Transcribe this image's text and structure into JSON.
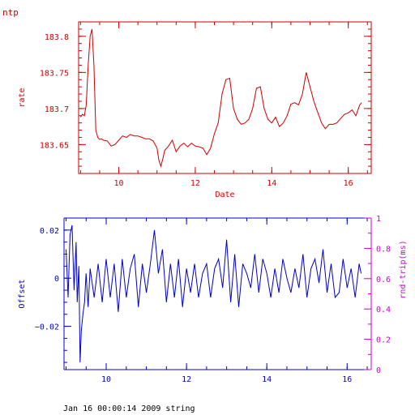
{
  "page": {
    "corner_label": "ntp",
    "caption": "Jan 16 00:00:14 2009 string"
  },
  "colors": {
    "rate": "#cc0000",
    "offset": "#0000cc",
    "rtt": "#cc00cc",
    "text": "#000000"
  },
  "chart_data": [
    {
      "type": "line",
      "title": "",
      "xlabel": "Date",
      "ylabel": "rate",
      "xlim": [
        8.95,
        16.6
      ],
      "ylim": [
        183.61,
        183.82
      ],
      "x_ticks": [
        10,
        12,
        14,
        16
      ],
      "y_ticks": [
        183.65,
        183.7,
        183.75,
        183.8
      ],
      "y_tick_labels": [
        "183.65",
        "183.7",
        "183.75",
        "183.8"
      ],
      "grid": false,
      "series": [
        {
          "x": [
            9.0,
            9.05,
            9.1,
            9.15,
            9.2,
            9.25,
            9.3,
            9.35,
            9.4,
            9.45,
            9.5,
            9.55,
            9.6,
            9.7,
            9.8,
            9.9,
            10.0,
            10.1,
            10.2,
            10.3,
            10.4,
            10.5,
            10.6,
            10.7,
            10.8,
            10.9,
            11.0,
            11.05,
            11.1,
            11.15,
            11.2,
            11.3,
            11.4,
            11.5,
            11.6,
            11.7,
            11.8,
            11.9,
            12.0,
            12.1,
            12.2,
            12.3,
            12.4,
            12.5,
            12.6,
            12.7,
            12.8,
            12.9,
            13.0,
            13.1,
            13.2,
            13.3,
            13.4,
            13.5,
            13.6,
            13.7,
            13.8,
            13.9,
            14.0,
            14.1,
            14.2,
            14.3,
            14.4,
            14.5,
            14.6,
            14.7,
            14.8,
            14.9,
            15.0,
            15.1,
            15.2,
            15.3,
            15.4,
            15.5,
            15.6,
            15.7,
            15.8,
            15.9,
            16.0,
            16.1,
            16.2,
            16.3,
            16.35
          ],
          "y": [
            183.688,
            183.692,
            183.69,
            183.705,
            183.76,
            183.8,
            183.81,
            183.76,
            183.67,
            183.66,
            183.657,
            183.658,
            183.656,
            183.655,
            183.648,
            183.65,
            183.656,
            183.662,
            183.66,
            183.664,
            183.662,
            183.662,
            183.66,
            183.658,
            183.658,
            183.655,
            183.645,
            183.628,
            183.62,
            183.63,
            183.642,
            183.648,
            183.656,
            183.64,
            183.648,
            183.652,
            183.647,
            183.652,
            183.648,
            183.647,
            183.645,
            183.636,
            183.645,
            183.665,
            183.68,
            183.72,
            183.74,
            183.742,
            183.7,
            183.685,
            183.678,
            183.68,
            183.685,
            183.7,
            183.728,
            183.73,
            183.7,
            183.685,
            183.68,
            183.688,
            183.675,
            183.68,
            183.69,
            183.706,
            183.708,
            183.705,
            183.72,
            183.75,
            183.73,
            183.71,
            183.695,
            183.68,
            183.672,
            183.678,
            183.678,
            183.68,
            183.686,
            183.692,
            183.694,
            183.698,
            183.69,
            183.705,
            183.708
          ]
        }
      ]
    },
    {
      "type": "line",
      "title": "",
      "xlabel": "",
      "ylabel": "Offset",
      "y2label": "rnd-trip(ms)",
      "xlim": [
        8.95,
        16.6
      ],
      "ylim": [
        -0.038,
        0.025
      ],
      "y2lim": [
        0,
        1
      ],
      "x_ticks": [
        10,
        12,
        14,
        16
      ],
      "y_ticks": [
        -0.02,
        0,
        0.02
      ],
      "y_tick_labels": [
        "−0.02",
        "0",
        "0.02"
      ],
      "y2_ticks": [
        0,
        0.2,
        0.4,
        0.6,
        0.8,
        1
      ],
      "y2_tick_labels": [
        "0",
        "0.2",
        "0.4",
        "0.6",
        "0.8",
        "1"
      ],
      "grid": false,
      "series": [
        {
          "x": [
            9.0,
            9.05,
            9.1,
            9.15,
            9.2,
            9.25,
            9.28,
            9.32,
            9.35,
            9.38,
            9.42,
            9.46,
            9.5,
            9.55,
            9.6,
            9.7,
            9.8,
            9.9,
            10.0,
            10.1,
            10.2,
            10.3,
            10.4,
            10.5,
            10.6,
            10.7,
            10.8,
            10.9,
            11.0,
            11.1,
            11.2,
            11.3,
            11.4,
            11.5,
            11.6,
            11.7,
            11.8,
            11.9,
            12.0,
            12.1,
            12.2,
            12.3,
            12.4,
            12.5,
            12.6,
            12.7,
            12.8,
            12.9,
            13.0,
            13.1,
            13.2,
            13.3,
            13.4,
            13.5,
            13.6,
            13.7,
            13.8,
            13.9,
            14.0,
            14.1,
            14.2,
            14.3,
            14.4,
            14.5,
            14.6,
            14.7,
            14.8,
            14.9,
            15.0,
            15.1,
            15.2,
            15.3,
            15.4,
            15.5,
            15.6,
            15.7,
            15.8,
            15.9,
            16.0,
            16.1,
            16.2,
            16.3,
            16.35
          ],
          "y": [
            0.012,
            -0.008,
            0.018,
            0.022,
            -0.005,
            0.015,
            -0.01,
            0.005,
            -0.035,
            -0.022,
            -0.015,
            -0.01,
            0.002,
            -0.012,
            0.004,
            -0.008,
            0.006,
            -0.01,
            0.008,
            -0.008,
            0.006,
            -0.014,
            0.008,
            -0.008,
            0.004,
            0.01,
            -0.012,
            0.006,
            -0.006,
            0.006,
            0.02,
            0.002,
            0.012,
            -0.01,
            0.006,
            -0.008,
            0.008,
            -0.012,
            0.004,
            -0.006,
            0.006,
            -0.008,
            0.002,
            0.006,
            -0.008,
            0.004,
            0.008,
            -0.004,
            0.016,
            -0.01,
            0.01,
            -0.012,
            0.006,
            0.002,
            -0.004,
            0.01,
            -0.006,
            0.008,
            0.002,
            -0.008,
            0.004,
            -0.006,
            0.008,
            0.0,
            -0.006,
            0.004,
            -0.004,
            0.01,
            -0.008,
            0.004,
            0.008,
            -0.002,
            0.012,
            -0.006,
            0.006,
            -0.008,
            -0.006,
            0.008,
            -0.004,
            0.004,
            -0.008,
            0.006,
            0.002
          ]
        }
      ]
    }
  ]
}
